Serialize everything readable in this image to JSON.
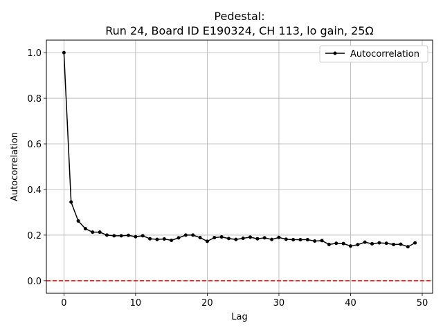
{
  "chart_data": {
    "type": "line",
    "title": "Pedestal:",
    "subtitle": "Run 24, Board ID E190324, CH 113, lo gain, 25Ω",
    "xlabel": "Lag",
    "ylabel": "Autocorrelation",
    "xlim": [
      -2.45,
      51.45
    ],
    "ylim": [
      -0.055,
      1.055
    ],
    "xticks": [
      0,
      10,
      20,
      30,
      40,
      50
    ],
    "xtick_labels": [
      "0",
      "10",
      "20",
      "30",
      "40",
      "50"
    ],
    "yticks": [
      0.0,
      0.2,
      0.4,
      0.6,
      0.8,
      1.0
    ],
    "ytick_labels": [
      "0.0",
      "0.2",
      "0.4",
      "0.6",
      "0.8",
      "1.0"
    ],
    "grid": true,
    "legend_position": "top-right",
    "reference_line": {
      "y": 0.0,
      "color": "#ff0000",
      "style": "dashed"
    },
    "series": [
      {
        "name": "Autocorrelation",
        "color": "#000000",
        "marker": "dot",
        "x": [
          0,
          1,
          2,
          3,
          4,
          5,
          6,
          7,
          8,
          9,
          10,
          11,
          12,
          13,
          14,
          15,
          16,
          17,
          18,
          19,
          20,
          21,
          22,
          23,
          24,
          25,
          26,
          27,
          28,
          29,
          30,
          31,
          32,
          33,
          34,
          35,
          36,
          37,
          38,
          39,
          40,
          41,
          42,
          43,
          44,
          45,
          46,
          47,
          48,
          49
        ],
        "values": [
          1.0,
          0.345,
          0.262,
          0.228,
          0.213,
          0.213,
          0.2,
          0.197,
          0.197,
          0.199,
          0.193,
          0.197,
          0.184,
          0.181,
          0.183,
          0.177,
          0.188,
          0.2,
          0.2,
          0.189,
          0.173,
          0.189,
          0.192,
          0.185,
          0.181,
          0.186,
          0.191,
          0.184,
          0.188,
          0.181,
          0.19,
          0.182,
          0.18,
          0.18,
          0.18,
          0.174,
          0.176,
          0.159,
          0.164,
          0.163,
          0.152,
          0.158,
          0.169,
          0.162,
          0.166,
          0.164,
          0.159,
          0.16,
          0.149,
          0.166
        ]
      }
    ]
  }
}
